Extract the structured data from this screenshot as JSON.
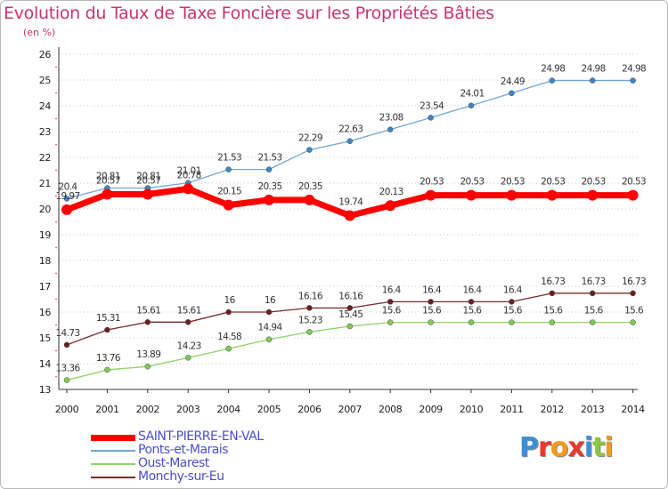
{
  "chart_data": {
    "type": "line",
    "title": "Evolution du Taux de Taxe Foncière sur les Propriétés Bâties",
    "unit_label": "(en %)",
    "x": [
      "2000",
      "2001",
      "2002",
      "2003",
      "2004",
      "2005",
      "2006",
      "2007",
      "2008",
      "2009",
      "2010",
      "2011",
      "2012",
      "2013",
      "2014"
    ],
    "ylim": [
      13,
      26
    ],
    "yticks": [
      "13",
      "14",
      "15",
      "16",
      "17",
      "18",
      "19",
      "20",
      "21",
      "22",
      "23",
      "24",
      "25",
      "26"
    ],
    "grid": "horizontal dotted",
    "legend_position": "bottom-left",
    "series": [
      {
        "name": "SAINT-PIERRE-EN-VAL",
        "color": "#ff0000",
        "marker": "#ff0000",
        "values": [
          19.97,
          20.57,
          20.57,
          20.78,
          20.15,
          20.35,
          20.35,
          19.74,
          20.13,
          20.53,
          20.53,
          20.53,
          20.53,
          20.53,
          20.53
        ],
        "labels": [
          "19.97",
          "20.57",
          "20.57",
          "20.78",
          "20.15",
          "20.35",
          "20.35",
          "19.74",
          "20.13",
          "20.53",
          "20.53",
          "20.53",
          "20.53",
          "20.53",
          "20.53"
        ]
      },
      {
        "name": "Ponts-et-Marais",
        "color": "#6fa8d8",
        "marker": "#3d86c6",
        "values": [
          20.4,
          20.81,
          20.81,
          21.01,
          21.53,
          21.53,
          22.29,
          22.63,
          23.08,
          23.54,
          24.01,
          24.49,
          24.98,
          24.98,
          24.98
        ],
        "labels": [
          "20.4",
          "20.81",
          "20.81",
          "21.01",
          "21.53",
          "21.53",
          "22.29",
          "22.63",
          "23.08",
          "23.54",
          "24.01",
          "24.49",
          "24.98",
          "24.98",
          "24.98"
        ]
      },
      {
        "name": "Oust-Marest",
        "color": "#8fd36b",
        "marker": "#7ecb53",
        "values": [
          13.36,
          13.76,
          13.89,
          14.23,
          14.58,
          14.94,
          15.23,
          15.45,
          15.6,
          15.6,
          15.6,
          15.6,
          15.6,
          15.6,
          15.6
        ],
        "labels": [
          "13.36",
          "13.76",
          "13.89",
          "14.23",
          "14.58",
          "14.94",
          "15.23",
          "15.45",
          "15.6",
          "15.6",
          "15.6",
          "15.6",
          "15.6",
          "15.6",
          "15.6"
        ]
      },
      {
        "name": "Monchy-sur-Eu",
        "color": "#7a2a2a",
        "marker": "#6b1f1f",
        "values": [
          14.73,
          15.31,
          15.61,
          15.61,
          16,
          16,
          16.16,
          16.16,
          16.4,
          16.4,
          16.4,
          16.4,
          16.73,
          16.73,
          16.73
        ],
        "labels": [
          "14.73",
          "15.31",
          "15.61",
          "15.61",
          "16",
          "16",
          "16.16",
          "16.16",
          "16.4",
          "16.4",
          "16.4",
          "16.4",
          "16.73",
          "16.73",
          "16.73"
        ]
      }
    ]
  },
  "brand": {
    "letters": [
      "P",
      "r",
      "o",
      "x",
      "i",
      "t",
      "i"
    ],
    "colors": [
      "#3a8fd8",
      "#e63b2e",
      "#f29a1f",
      "#e63b2e",
      "#3a8fd8",
      "#8cc63f",
      "#f29a1f"
    ]
  }
}
